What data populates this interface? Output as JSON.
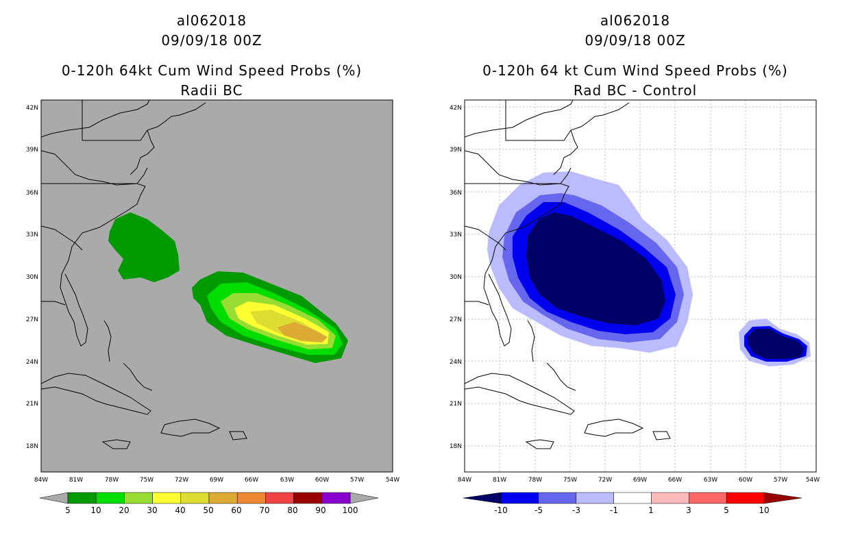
{
  "panels": [
    {
      "storm_id": "al062018",
      "datetime": "09/09/18 00Z",
      "title": "0-120h 64kt Cum Wind Speed Probs (%)",
      "subtitle": "Radii BC",
      "colorbar_labels": [
        "5",
        "10",
        "20",
        "30",
        "40",
        "50",
        "60",
        "70",
        "80",
        "90",
        "100"
      ],
      "colorbar_colors": [
        "#009900",
        "#00dd00",
        "#99dd33",
        "#ffff33",
        "#dddd33",
        "#ddaa33",
        "#ee8833",
        "#ee4444",
        "#990000",
        "#8800cc"
      ]
    },
    {
      "storm_id": "al062018",
      "datetime": "09/09/18 00Z",
      "title": "0-120h 64 kt Cum Wind Speed Probs (%)",
      "subtitle": "Rad BC - Control",
      "colorbar_labels": [
        "-10",
        "-5",
        "-3",
        "-1",
        "1",
        "3",
        "5",
        "10"
      ],
      "colorbar_colors": [
        "#000066",
        "#0000ee",
        "#6666ee",
        "#bbbbff",
        "#ffffff",
        "#ffbbbb",
        "#ff6666",
        "#ff0000",
        "#990000"
      ]
    }
  ],
  "axes": {
    "lon_labels": [
      "84W",
      "81W",
      "78W",
      "75W",
      "72W",
      "69W",
      "66W",
      "63W",
      "60W",
      "57W",
      "54W"
    ],
    "lat_labels": [
      "42N",
      "39N",
      "36N",
      "33N",
      "30N",
      "27N",
      "24N",
      "21N",
      "18N"
    ]
  },
  "colors": {
    "map_bg_left": "#aaaaaa",
    "map_bg_right": "#ffffff"
  }
}
